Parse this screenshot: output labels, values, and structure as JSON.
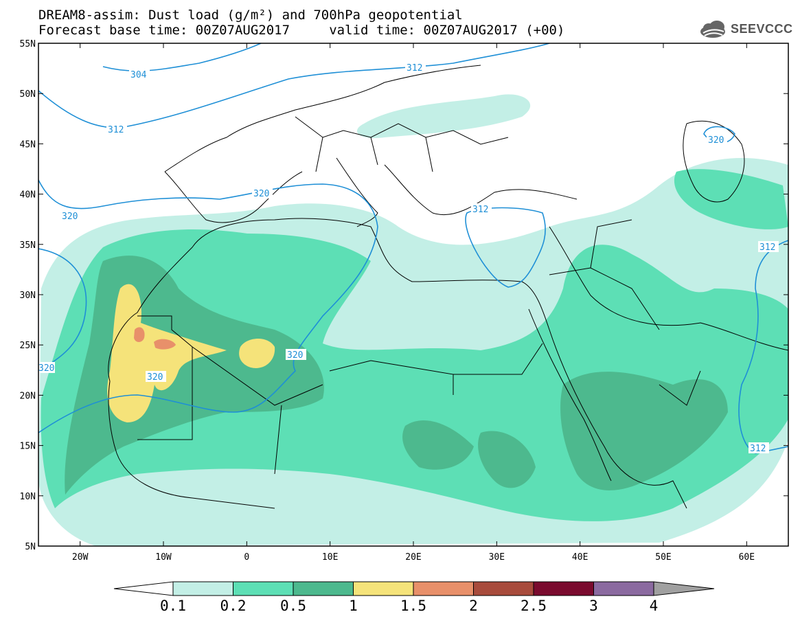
{
  "header": {
    "title_line1": "DREAM8-assim: Dust load (g/m²) and 700hPa geopotential",
    "title_line2": "Forecast base time: 00Z07AUG2017     valid time: 00Z07AUG2017 (+00)",
    "logo_text": "SEEVCCC"
  },
  "map": {
    "lon_range": [
      -25,
      65
    ],
    "lat_range": [
      5,
      55
    ],
    "lat_ticks": [
      "55N",
      "50N",
      "45N",
      "40N",
      "35N",
      "30N",
      "25N",
      "20N",
      "15N",
      "10N",
      "5N"
    ],
    "lon_ticks": [
      "20W",
      "10W",
      "0",
      "10E",
      "20E",
      "30E",
      "40E",
      "50E",
      "60E"
    ],
    "contour_labels": [
      "304",
      "312",
      "312",
      "320",
      "320",
      "320",
      "320",
      "320",
      "312",
      "320",
      "312",
      "312"
    ]
  },
  "colorbar": {
    "labels": [
      "0.1",
      "0.2",
      "0.5",
      "1",
      "1.5",
      "2",
      "2.5",
      "3",
      "4"
    ],
    "colors": [
      "#c3efe6",
      "#5ddfb5",
      "#4db98e",
      "#f5e37a",
      "#e8906a",
      "#a84b3c",
      "#7a0b2e",
      "#8b6aa0",
      "#a0a0a0"
    ]
  },
  "colors": {
    "contour": "#1e8fd6",
    "land_border": "#000000",
    "dust_light": "#c3efe6",
    "dust_mid": "#5ddfb5",
    "dust_dark": "#4db98e",
    "dust_yellow": "#f5e37a",
    "dust_orange": "#e8906a"
  }
}
